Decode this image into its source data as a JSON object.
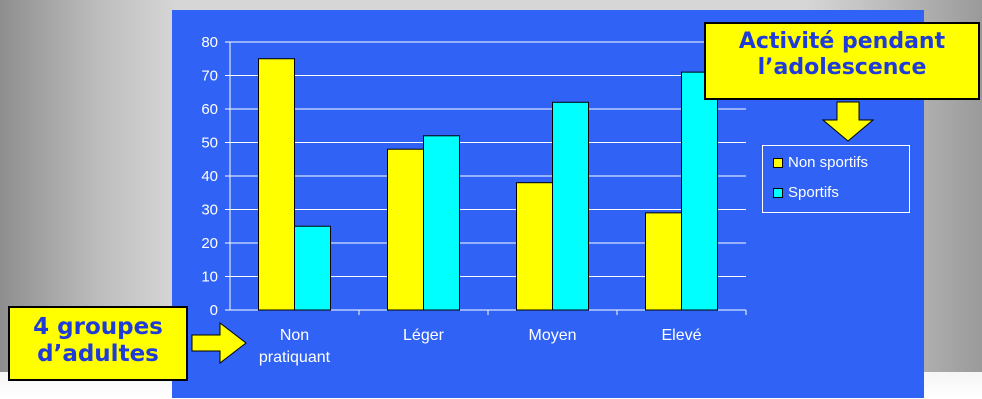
{
  "chart_data": {
    "type": "bar",
    "categories": [
      "Non pratiquant",
      "Léger",
      "Moyen",
      "Elevé"
    ],
    "category_lines": [
      [
        "Non",
        "pratiquant"
      ],
      [
        "Léger"
      ],
      [
        "Moyen"
      ],
      [
        "Elevé"
      ]
    ],
    "series": [
      {
        "name": "Non sportifs",
        "values": [
          75,
          48,
          38,
          29
        ],
        "color": "#ffff00"
      },
      {
        "name": "Sportifs",
        "values": [
          25,
          52,
          62,
          71
        ],
        "color": "#00ffff"
      }
    ],
    "ylim": [
      0,
      80
    ],
    "yticks": [
      0,
      10,
      20,
      30,
      40,
      50,
      60,
      70,
      80
    ],
    "grid": true,
    "legend_position": "right",
    "background_color": "#2f62f5",
    "xlabel": "",
    "ylabel": ""
  },
  "annotations": {
    "top_callout": {
      "line1": "Activité pendant",
      "line2": "l’adolescence",
      "color": "#ffff00",
      "text_color": "#1f3bd8"
    },
    "left_callout": {
      "line1": "4 groupes",
      "line2": "d’adultes",
      "color": "#ffff00",
      "text_color": "#1f3bd8"
    },
    "arrow_color": "#ffff00"
  }
}
